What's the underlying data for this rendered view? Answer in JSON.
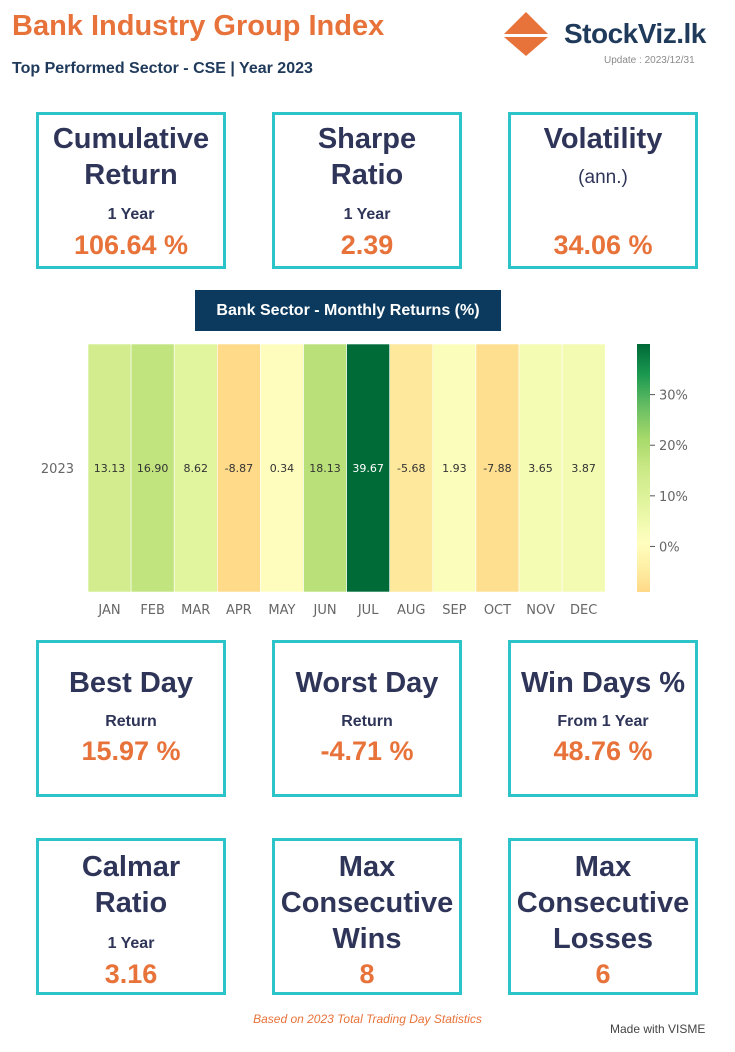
{
  "header": {
    "title": "Bank Industry Group Index",
    "subtitle": "Top Performed Sector - CSE | Year 2023",
    "logo_text": "StockViz.lk",
    "update": "Update : 2023/12/31",
    "logo_icon": "stockviz-logo-icon",
    "accent": "#e8733a",
    "card_border": "#2cc4c8"
  },
  "cards_row1": [
    {
      "title": "Cumulative\nReturn",
      "sub": "1 Year",
      "value": "106.64 %"
    },
    {
      "title": "Sharpe\nRatio",
      "sub": "1 Year",
      "value": "2.39"
    },
    {
      "title": "Volatility",
      "sub": "(ann.)",
      "value": "34.06 %"
    }
  ],
  "chart_data": {
    "type": "heatmap",
    "title": "Bank Sector - Monthly Returns (%)",
    "y_categories": [
      "2023"
    ],
    "x_categories": [
      "JAN",
      "FEB",
      "MAR",
      "APR",
      "MAY",
      "JUN",
      "JUL",
      "AUG",
      "SEP",
      "OCT",
      "NOV",
      "DEC"
    ],
    "values": [
      [
        13.13,
        16.9,
        8.62,
        -8.87,
        0.34,
        18.13,
        39.67,
        -5.68,
        1.93,
        -7.88,
        3.65,
        3.87
      ]
    ],
    "value_labels": [
      "13.13",
      "16.90",
      "8.62",
      "-8.87",
      "0.34",
      "18.13",
      "39.67",
      "-5.68",
      "1.93",
      "-7.88",
      "3.65",
      "3.87"
    ],
    "colorbar": {
      "ticks": [
        0,
        10,
        20,
        30
      ],
      "tick_labels": [
        "0%",
        "10%",
        "20%",
        "30%"
      ],
      "range": [
        -9,
        40
      ]
    },
    "colormap": "RdYlGn"
  },
  "cards_row2": [
    {
      "title": "Best Day",
      "sub": "Return",
      "value": "15.97 %"
    },
    {
      "title": "Worst Day",
      "sub": "Return",
      "value": "-4.71 %"
    },
    {
      "title": "Win Days %",
      "sub": "From 1 Year",
      "value": "48.76 %"
    }
  ],
  "cards_row3": [
    {
      "title": "Calmar\nRatio",
      "sub": "1 Year",
      "value": "3.16"
    },
    {
      "title": "Max\nConsecutive\nWins",
      "sub": "",
      "value": "8"
    },
    {
      "title": "Max\nConsecutive\nLosses",
      "sub": "",
      "value": "6"
    }
  ],
  "footer": {
    "note": "Based on 2023 Total Trading Day Statistics",
    "made_with": "Made with VISME"
  }
}
